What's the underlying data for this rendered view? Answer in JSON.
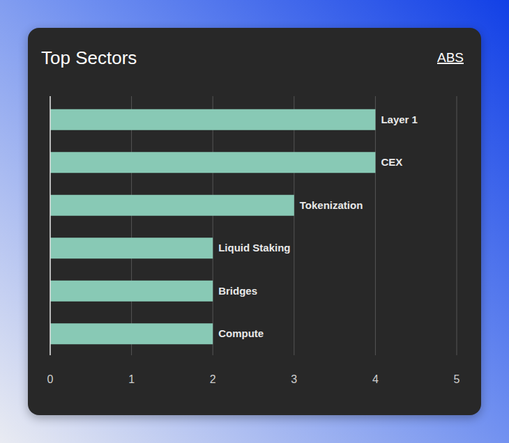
{
  "chart_data": {
    "type": "bar",
    "title": "Top Sectors",
    "annotations": [
      "ABS"
    ],
    "orientation": "horizontal",
    "categories": [
      "Layer 1",
      "CEX",
      "Tokenization",
      "Liquid Staking",
      "Bridges",
      "Compute"
    ],
    "values": [
      4,
      4,
      3,
      2,
      2,
      2
    ],
    "color": "#88c9b5",
    "xlim": [
      0,
      5
    ],
    "xticks": [
      0,
      1,
      2,
      3,
      4,
      5
    ],
    "grid": true
  }
}
